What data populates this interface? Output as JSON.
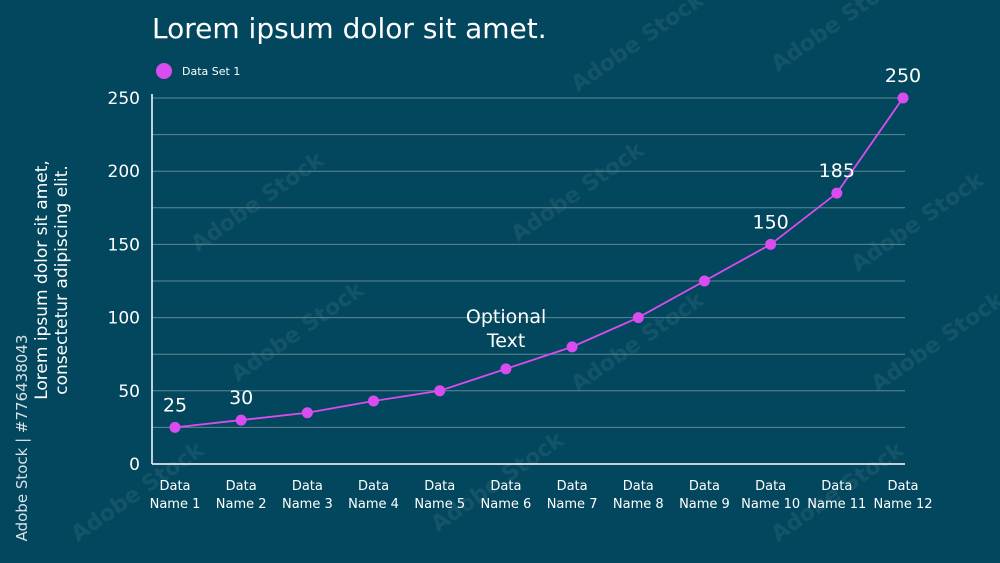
{
  "watermark": {
    "text": "Adobe Stock",
    "id_text": "Adobe Stock | #776438043"
  },
  "colors": {
    "background": "#03475e",
    "series": "#d94cf0",
    "grid": "#5f8796",
    "axis": "#ffffff"
  },
  "chart_data": {
    "type": "line",
    "title": "Lorem ipsum dolor sit amet.",
    "xlabel": "",
    "ylabel": "Lorem ipsum dolor sit amet, consectetur adipiscing elit.",
    "ylabel_lines": [
      "Lorem ipsum dolor sit amet,",
      "consectetur adipiscing elit."
    ],
    "ylim": [
      0,
      250
    ],
    "yticks": [
      0,
      50,
      100,
      150,
      200,
      250
    ],
    "grid": true,
    "legend_position": "top-left",
    "categories": [
      [
        "Data",
        "Name 1"
      ],
      [
        "Data",
        "Name 2"
      ],
      [
        "Data",
        "Name 3"
      ],
      [
        "Data",
        "Name 4"
      ],
      [
        "Data",
        "Name 5"
      ],
      [
        "Data",
        "Name 6"
      ],
      [
        "Data",
        "Name 7"
      ],
      [
        "Data",
        "Name 8"
      ],
      [
        "Data",
        "Name 9"
      ],
      [
        "Data",
        "Name 10"
      ],
      [
        "Data",
        "Name 11"
      ],
      [
        "Data",
        "Name 12"
      ]
    ],
    "series": [
      {
        "name": "Data Set 1",
        "values": [
          25,
          30,
          35,
          43,
          50,
          65,
          80,
          100,
          125,
          150,
          185,
          250
        ]
      }
    ],
    "data_labels": [
      {
        "index": 0,
        "text": "25"
      },
      {
        "index": 1,
        "text": "30"
      },
      {
        "index": 9,
        "text": "150"
      },
      {
        "index": 10,
        "text": "185"
      },
      {
        "index": 11,
        "text": "250"
      }
    ],
    "annotation": {
      "index": 6,
      "lines": [
        "Optional",
        "Text"
      ]
    }
  }
}
